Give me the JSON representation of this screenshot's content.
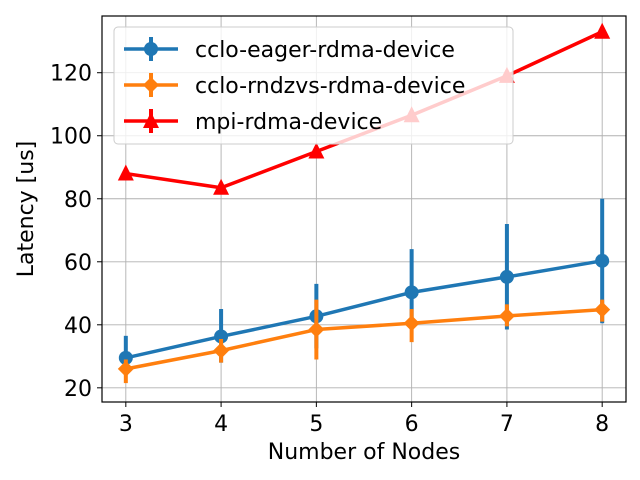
{
  "chart_data": {
    "type": "line",
    "title": "",
    "xlabel": "Number of Nodes",
    "ylabel": "Latency [us]",
    "x": [
      3,
      4,
      5,
      6,
      7,
      8
    ],
    "xlim": [
      2.75,
      8.25
    ],
    "ylim": [
      15.5,
      138
    ],
    "xticks": [
      3,
      4,
      5,
      6,
      7,
      8
    ],
    "yticks": [
      20,
      40,
      60,
      80,
      100,
      120
    ],
    "grid": true,
    "legend_position": "top-left",
    "series": [
      {
        "name": "cclo-eager-rdma-device",
        "color": "#1f77b4",
        "marker": "circle",
        "values": [
          29.5,
          36.3,
          42.7,
          50.3,
          55.2,
          60.3
        ],
        "err_low": [
          25.5,
          28.0,
          32.5,
          40.0,
          38.5,
          40.5
        ],
        "err_high": [
          36.5,
          45.0,
          53.0,
          64.0,
          72.0,
          80.0
        ]
      },
      {
        "name": "cclo-rndzvs-rdma-device",
        "color": "#ff7f0e",
        "marker": "diamond",
        "values": [
          26.0,
          31.8,
          38.5,
          40.5,
          42.8,
          44.8
        ],
        "err_low": [
          21.5,
          28.0,
          29.0,
          34.5,
          39.5,
          41.0
        ],
        "err_high": [
          29.0,
          35.5,
          48.0,
          45.0,
          46.5,
          48.0
        ]
      },
      {
        "name": "mpi-rdma-device",
        "color": "#ff0000",
        "marker": "triangle",
        "values": [
          88.0,
          83.5,
          95.0,
          106.5,
          119.0,
          133.0
        ],
        "err_low": [
          87.5,
          83.0,
          94.5,
          106.0,
          118.5,
          132.5
        ],
        "err_high": [
          88.5,
          84.0,
          95.5,
          107.0,
          119.5,
          133.5
        ]
      }
    ]
  }
}
